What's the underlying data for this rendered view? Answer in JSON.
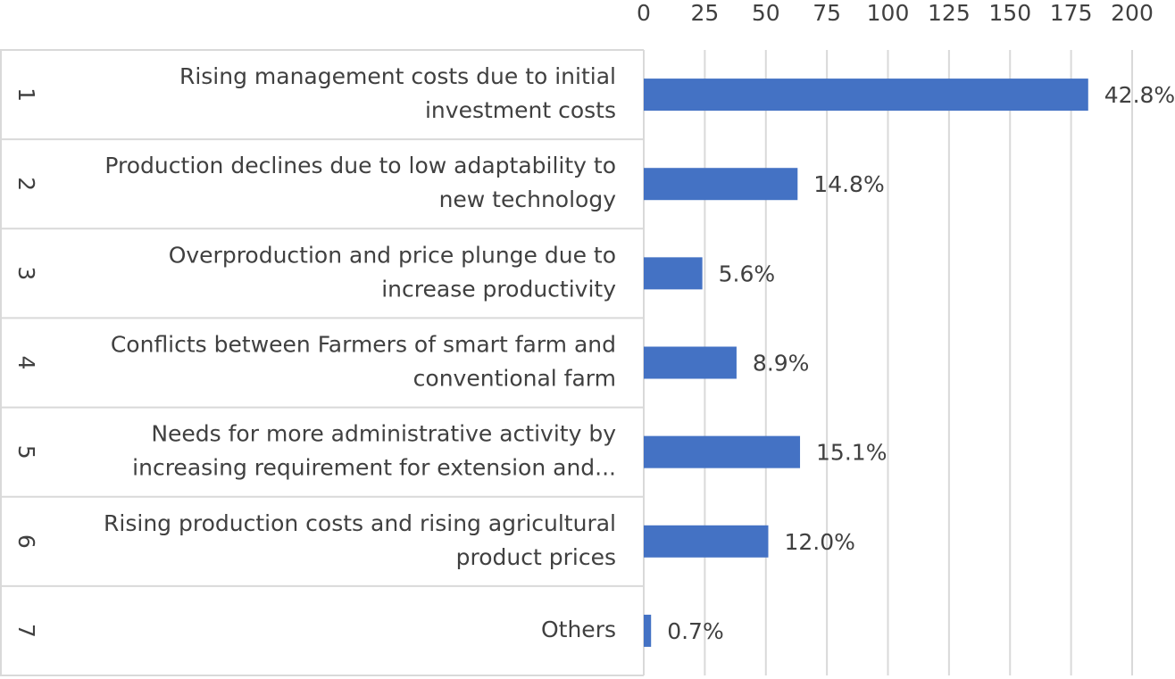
{
  "chart_data": {
    "type": "bar",
    "orientation": "horizontal",
    "groups": [
      "1",
      "2",
      "3",
      "4",
      "5",
      "6",
      "7"
    ],
    "categories": [
      [
        "Rising management costs due to initial",
        "investment costs"
      ],
      [
        "Production declines due to low adaptability to",
        "new technology"
      ],
      [
        "Overproduction and price plunge due to",
        "increase productivity"
      ],
      [
        "Conflicts between Farmers of smart farm and",
        "conventional farm"
      ],
      [
        "Needs for more administrative activity by",
        "increasing requirement for extension and..."
      ],
      [
        "Rising production costs and rising agricultural",
        "product prices"
      ],
      [
        "Others"
      ]
    ],
    "values": [
      182,
      63,
      24,
      38,
      64,
      51,
      3
    ],
    "value_labels": [
      "42.8%",
      "14.8%",
      "5.6%",
      "8.9%",
      "15.1%",
      "12.0%",
      "0.7%"
    ],
    "color": "#4472c4",
    "xlim": [
      0,
      200
    ],
    "xticks": [
      0,
      25,
      50,
      75,
      100,
      125,
      150,
      175,
      200
    ],
    "grid": true
  }
}
